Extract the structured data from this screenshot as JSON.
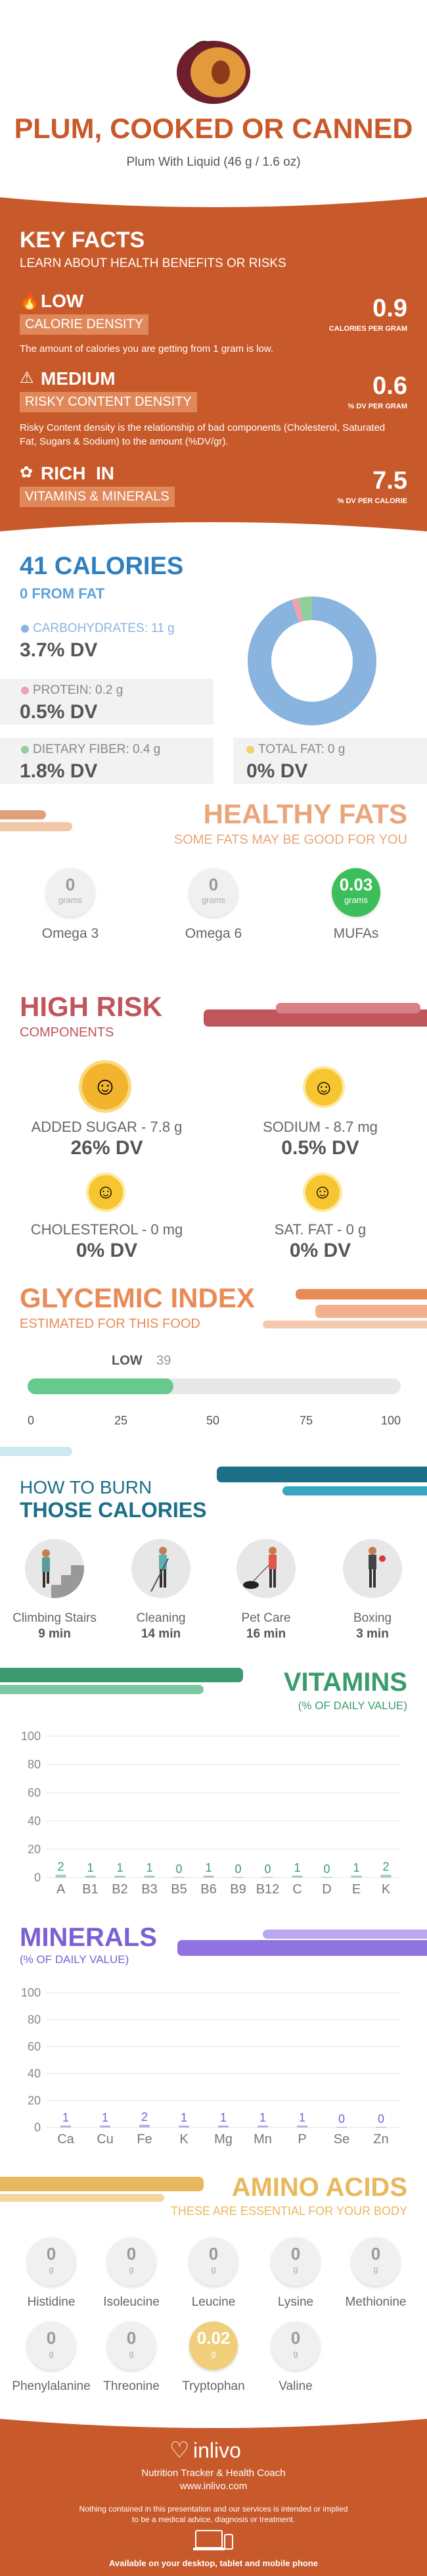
{
  "header": {
    "title": "PLUM, COOKED OR CANNED",
    "subtitle": "Plum With Liquid (46 g / 1.6 oz)"
  },
  "key_facts": {
    "title": "KEY FACTS",
    "subtitle": "LEARN ABOUT HEALTH BENEFITS OR RISKS",
    "calorie": {
      "level": "LOW",
      "label": "CALORIE DENSITY",
      "value": "0.9",
      "unit": "CALORIES PER GRAM",
      "desc": "The amount of calories you are getting from 1 gram is low."
    },
    "risky": {
      "level": "MEDIUM",
      "label": "RISKY CONTENT DENSITY",
      "value": "0.6",
      "unit": "% DV PER GRAM",
      "desc": "Risky Content density is the relationship of bad components (Cholesterol, Saturated Fat, Sugars & Sodium) to the amount (%DV/gr)."
    },
    "vitamins": {
      "level": "RICH  IN",
      "label": "VITAMINS & MINERALS",
      "value": "7.5",
      "unit": "% DV PER CALORIE"
    }
  },
  "calories": {
    "title": "41 CALORIES",
    "from_fat": "0 FROM FAT",
    "carbs": {
      "label": "CARBOHYDRATES: 11 g",
      "dv": "3.7% DV",
      "color": "#8ab4e0",
      "value": 11
    },
    "protein": {
      "label": "PROTEIN: 0.2 g",
      "dv": "0.5% DV",
      "color": "#f0a0b0",
      "value": 0.2
    },
    "fiber": {
      "label": "DIETARY FIBER: 0.4 g",
      "dv": "1.8% DV",
      "color": "#8fcf9c",
      "value": 0.4
    },
    "fat": {
      "label": "TOTAL FAT: 0 g",
      "dv": "0% DV",
      "color": "#f3cf6e",
      "value": 0
    }
  },
  "healthy_fats": {
    "title": "HEALTHY FATS",
    "subtitle": "SOME FATS MAY BE GOOD FOR YOU",
    "items": [
      {
        "value": "0",
        "unit": "grams",
        "label": "Omega 3"
      },
      {
        "value": "0",
        "unit": "grams",
        "label": "Omega 6"
      },
      {
        "value": "0.03",
        "unit": "grams",
        "label": "MUFAs"
      }
    ]
  },
  "high_risk": {
    "title": "HIGH RISK",
    "subtitle": "COMPONENTS",
    "items": [
      {
        "label": "ADDED SUGAR - 7.8 g",
        "dv": "26% DV"
      },
      {
        "label": "SODIUM - 8.7 mg",
        "dv": "0.5% DV"
      },
      {
        "label": "CHOLESTEROL - 0 mg",
        "dv": "0% DV"
      },
      {
        "label": "SAT. FAT - 0 g",
        "dv": "0% DV"
      }
    ]
  },
  "glycemic": {
    "title": "GLYCEMIC INDEX",
    "subtitle": "ESTIMATED FOR THIS FOOD",
    "level": "LOW",
    "value": 39,
    "value_text": "39",
    "ticks": [
      "0",
      "25",
      "50",
      "75",
      "100"
    ]
  },
  "burn": {
    "title1": "HOW TO BURN",
    "title2": "THOSE CALORIES",
    "items": [
      {
        "label": "Climbing Stairs",
        "time": "9 min"
      },
      {
        "label": "Cleaning",
        "time": "14 min"
      },
      {
        "label": "Pet Care",
        "time": "16 min"
      },
      {
        "label": "Boxing",
        "time": "3 min"
      }
    ]
  },
  "vitamins": {
    "title": "VITAMINS",
    "subtitle": "(% OF DAILY VALUE)",
    "chart_data": {
      "type": "bar",
      "categories": [
        "A",
        "B1",
        "B2",
        "B3",
        "B5",
        "B6",
        "B9",
        "B12",
        "C",
        "D",
        "E",
        "K"
      ],
      "values": [
        2,
        1,
        1,
        1,
        0,
        1,
        0,
        0,
        1,
        0,
        1,
        2
      ],
      "labels": [
        "2",
        "1",
        "1",
        "1",
        "0",
        "1",
        "0",
        "0",
        "1",
        "0",
        "1",
        "2"
      ],
      "ylim": [
        0,
        100
      ],
      "yticks": [
        "0",
        "20",
        "40",
        "60",
        "80",
        "100"
      ],
      "color": "#5aaa7e"
    }
  },
  "minerals": {
    "title": "MINERALS",
    "subtitle": "(% OF DAILY VALUE)",
    "chart_data": {
      "type": "bar",
      "categories": [
        "Ca",
        "Cu",
        "Fe",
        "K",
        "Mg",
        "Mn",
        "P",
        "Se",
        "Zn"
      ],
      "values": [
        1,
        1,
        2,
        1,
        1,
        1,
        1,
        0,
        0
      ],
      "labels": [
        "1",
        "1",
        "2",
        "1",
        "1",
        "1",
        "1",
        "0",
        "0"
      ],
      "ylim": [
        0,
        100
      ],
      "yticks": [
        "0",
        "20",
        "40",
        "60",
        "80",
        "100"
      ],
      "color": "#7b6fd4"
    }
  },
  "amino": {
    "title": "AMINO ACIDS",
    "subtitle": "THESE ARE ESSENTIAL FOR YOUR BODY",
    "unit": "g",
    "items": [
      {
        "value": "0",
        "label": "Histidine"
      },
      {
        "value": "0",
        "label": "Isoleucine"
      },
      {
        "value": "0",
        "label": "Leucine"
      },
      {
        "value": "0",
        "label": "Lysine"
      },
      {
        "value": "0",
        "label": "Methionine"
      },
      {
        "value": "0",
        "label": "Phenylalanine"
      },
      {
        "value": "0",
        "label": "Threonine"
      },
      {
        "value": "0.02",
        "label": "Tryptophan"
      },
      {
        "value": "0",
        "label": "Valine"
      }
    ]
  },
  "footer": {
    "brand": "inlivo",
    "tagline": "Nutrition Tracker & Health Coach",
    "url": "www.inlivo.com",
    "disclaimer1": "Nothing contained in this presentation and our services is intended or implied",
    "disclaimer2": "to be a medical advice, diagnosis or treatment.",
    "available": "Available on your desktop, tablet and mobile phone"
  },
  "colors": {
    "orange": "#c8592a",
    "glycemic": "#e98b57",
    "risk": "#c0555b",
    "vit": "#3c9b6e",
    "min": "#7b5fd4",
    "amino": "#e8b95c",
    "blue": "#2f7fc0"
  }
}
